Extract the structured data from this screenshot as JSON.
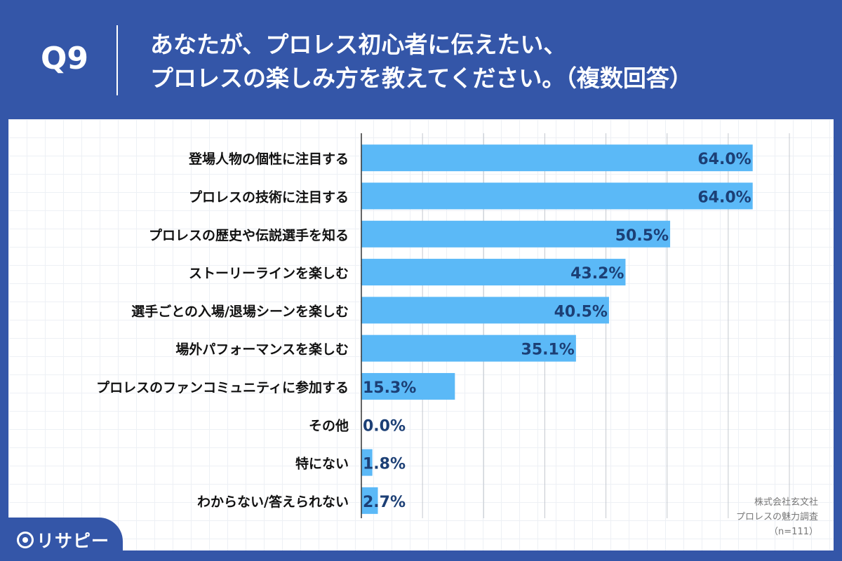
{
  "header": {
    "question": "Q9",
    "title_line1": "あなたが、プロレス初心者に伝えたい、",
    "title_line2": "プロレスの楽しみ方を教えてください。（複数回答）"
  },
  "source": {
    "company": "株式会社玄文社",
    "survey": "プロレスの魅力調査",
    "n": "（n=111）"
  },
  "logo": {
    "text": "リサピー",
    "icon": "pin-logo-icon"
  },
  "colors": {
    "header_bg": "#3456a8",
    "bar": "#5bb9f7",
    "value_text": "#1c3f75",
    "label_text": "#111111"
  },
  "chart_data": {
    "type": "bar",
    "orientation": "horizontal",
    "categories": [
      "登場人物の個性に注目する",
      "プロレスの技術に注目する",
      "プロレスの歴史や伝説選手を知る",
      "ストーリーラインを楽しむ",
      "選手ごとの入場/退場シーンを楽しむ",
      "場外パフォーマンスを楽しむ",
      "プロレスのファンコミュニティに参加する",
      "その他",
      "特にない",
      "わからない/答えられない"
    ],
    "values": [
      64.0,
      64.0,
      50.5,
      43.2,
      40.5,
      35.1,
      15.3,
      0.0,
      1.8,
      2.7
    ],
    "value_labels": [
      "64.0%",
      "64.0%",
      "50.5%",
      "43.2%",
      "40.5%",
      "35.1%",
      "15.3%",
      "0.0%",
      "1.8%",
      "2.7%"
    ],
    "xlim": [
      0,
      70
    ],
    "grid": true
  }
}
